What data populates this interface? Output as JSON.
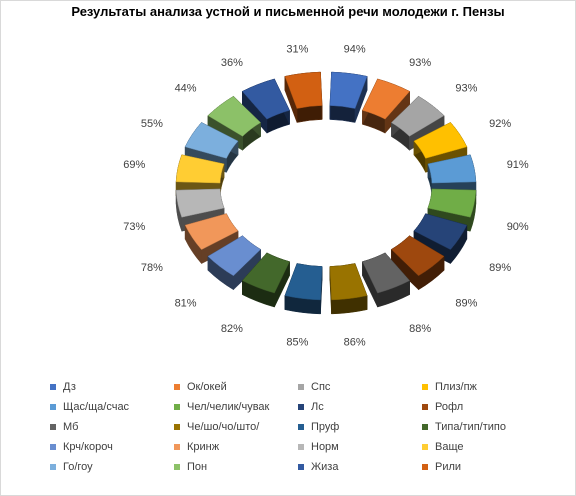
{
  "chart_data": {
    "type": "pie",
    "title": "Результаты анализа устной и письменной речи молодежи г. Пензы",
    "value_format": "percent",
    "legend_position": "bottom",
    "slices": [
      {
        "label": "Дз",
        "value": 94,
        "color": "#4472C4"
      },
      {
        "label": "Ок/окей",
        "value": 93,
        "color": "#ED7D31"
      },
      {
        "label": "Спс",
        "value": 93,
        "color": "#A5A5A5"
      },
      {
        "label": "Плиз/пж",
        "value": 92,
        "color": "#FFC000"
      },
      {
        "label": "Щас/ща/счас",
        "value": 91,
        "color": "#5B9BD5"
      },
      {
        "label": "Чел/челик/чувак",
        "value": 90,
        "color": "#70AD47"
      },
      {
        "label": "Лс",
        "value": 89,
        "color": "#264478"
      },
      {
        "label": "Рофл",
        "value": 89,
        "color": "#9E480E"
      },
      {
        "label": "Мб",
        "value": 88,
        "color": "#636363"
      },
      {
        "label": "Че/шо/чо/што/",
        "value": 86,
        "color": "#997300"
      },
      {
        "label": "Пруф",
        "value": 85,
        "color": "#255E91"
      },
      {
        "label": "Типа/тип/типо",
        "value": 82,
        "color": "#43682B"
      },
      {
        "label": "Крч/короч",
        "value": 81,
        "color": "#698ED0"
      },
      {
        "label": "Кринж",
        "value": 78,
        "color": "#F1975A"
      },
      {
        "label": "Норм",
        "value": 73,
        "color": "#B7B7B7"
      },
      {
        "label": "Ваще",
        "value": 69,
        "color": "#FFCD33"
      },
      {
        "label": "Го/гоу",
        "value": 55,
        "color": "#7CAFDD"
      },
      {
        "label": "Пон",
        "value": 44,
        "color": "#8CC168"
      },
      {
        "label": "Жиза",
        "value": 36,
        "color": "#335AA1"
      },
      {
        "label": "Рили",
        "value": 31,
        "color": "#D26012"
      }
    ]
  }
}
